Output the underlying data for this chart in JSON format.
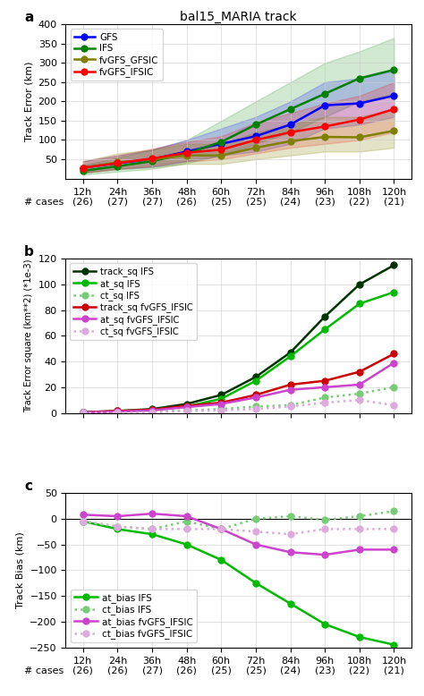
{
  "title": "bal15_MARIA track",
  "x": [
    12,
    24,
    36,
    48,
    60,
    72,
    84,
    96,
    108,
    120
  ],
  "xtick_labels": [
    "12h",
    "24h",
    "36h",
    "48h",
    "60h",
    "72h",
    "84h",
    "96h",
    "108h",
    "120h"
  ],
  "xcases_a": [
    "(26)",
    "(27)",
    "(27)",
    "(26)",
    "(25)",
    "(25)",
    "(24)",
    "(23)",
    "(22)",
    "(21)"
  ],
  "xcases_bc": [
    "(26)",
    "(26)",
    "(27)",
    "(26)",
    "(25)",
    "(25)",
    "(24)",
    "(23)",
    "(22)",
    "(21)"
  ],
  "panel_a": {
    "ylabel": "Track Error (km)",
    "ylim": [
      0,
      400
    ],
    "yticks": [
      50,
      100,
      150,
      200,
      250,
      300,
      350,
      400
    ],
    "GFS_mean": [
      28,
      40,
      50,
      70,
      90,
      110,
      140,
      190,
      195,
      215
    ],
    "GFS_lo": [
      15,
      25,
      30,
      45,
      60,
      70,
      90,
      130,
      140,
      160
    ],
    "GFS_hi": [
      45,
      60,
      75,
      100,
      130,
      160,
      200,
      250,
      260,
      280
    ],
    "IFS_mean": [
      20,
      32,
      45,
      65,
      95,
      140,
      180,
      220,
      260,
      282
    ],
    "IFS_lo": [
      10,
      18,
      25,
      40,
      60,
      90,
      120,
      160,
      200,
      220
    ],
    "IFS_hi": [
      35,
      55,
      75,
      100,
      150,
      200,
      250,
      300,
      330,
      365
    ],
    "GFSIC_mean": [
      28,
      42,
      50,
      60,
      60,
      80,
      97,
      108,
      107,
      124
    ],
    "GFSIC_lo": [
      15,
      25,
      30,
      38,
      38,
      50,
      60,
      70,
      70,
      80
    ],
    "GFSIC_hi": [
      45,
      65,
      75,
      90,
      90,
      120,
      140,
      160,
      160,
      180
    ],
    "IFSIC_mean": [
      28,
      40,
      52,
      67,
      75,
      100,
      120,
      135,
      153,
      180
    ],
    "IFSIC_lo": [
      15,
      25,
      33,
      45,
      50,
      65,
      80,
      90,
      100,
      120
    ],
    "IFSIC_hi": [
      45,
      60,
      78,
      95,
      110,
      145,
      170,
      195,
      215,
      250
    ]
  },
  "panel_b": {
    "ylabel": "Track Error square (km**2) (*1e-3)",
    "ylim": [
      0,
      120
    ],
    "yticks": [
      0,
      20,
      40,
      60,
      80,
      100,
      120
    ],
    "track_sq_IFS": [
      0.5,
      1.5,
      3,
      7,
      14,
      28,
      47,
      75,
      100,
      115
    ],
    "at_sq_IFS": [
      0.4,
      1.2,
      2.5,
      5,
      11,
      25,
      44,
      65,
      85,
      94
    ],
    "ct_sq_IFS": [
      0.1,
      0.3,
      0.8,
      2,
      3,
      5,
      6,
      12,
      15,
      20
    ],
    "track_sq_IFSIC": [
      0.5,
      1.5,
      2.5,
      5.5,
      8,
      14,
      22,
      25,
      32,
      46
    ],
    "at_sq_IFSIC": [
      0.3,
      1.0,
      2.0,
      4.5,
      7,
      12,
      18,
      20,
      22,
      39
    ],
    "ct_sq_IFSIC": [
      0.1,
      0.2,
      0.5,
      1.5,
      2,
      3,
      5,
      8,
      10,
      6
    ]
  },
  "panel_c": {
    "ylabel": "Track Bias (km)",
    "ylim": [
      -250,
      50
    ],
    "yticks": [
      -250,
      -200,
      -150,
      -100,
      -50,
      0,
      50
    ],
    "at_bias_IFS": [
      -5,
      -20,
      -30,
      -50,
      -80,
      -125,
      -165,
      -205,
      -230,
      -245
    ],
    "ct_bias_IFS": [
      -5,
      -15,
      -20,
      -5,
      -20,
      0,
      5,
      -2,
      5,
      15
    ],
    "at_bias_IFSIC": [
      8,
      5,
      10,
      5,
      -20,
      -50,
      -65,
      -70,
      -60,
      -60
    ],
    "ct_bias_IFSIC": [
      -5,
      -15,
      -20,
      -20,
      -20,
      -25,
      -30,
      -20,
      -20,
      -20
    ]
  },
  "colors": {
    "GFS": "#0000ff",
    "IFS": "#008000",
    "GFSIC": "#808000",
    "IFSIC": "#ff0000",
    "track_sq_IFS": "#003300",
    "at_sq_IFS": "#00bb00",
    "ct_sq_IFS": "#77cc77",
    "track_sq_IFSIC": "#cc0000",
    "at_sq_IFSIC": "#cc44cc",
    "ct_sq_IFSIC": "#ddaadd",
    "at_bias_IFS": "#00bb00",
    "ct_bias_IFS": "#77cc77",
    "at_bias_IFSIC": "#cc44cc",
    "ct_bias_IFSIC": "#ddaadd"
  }
}
